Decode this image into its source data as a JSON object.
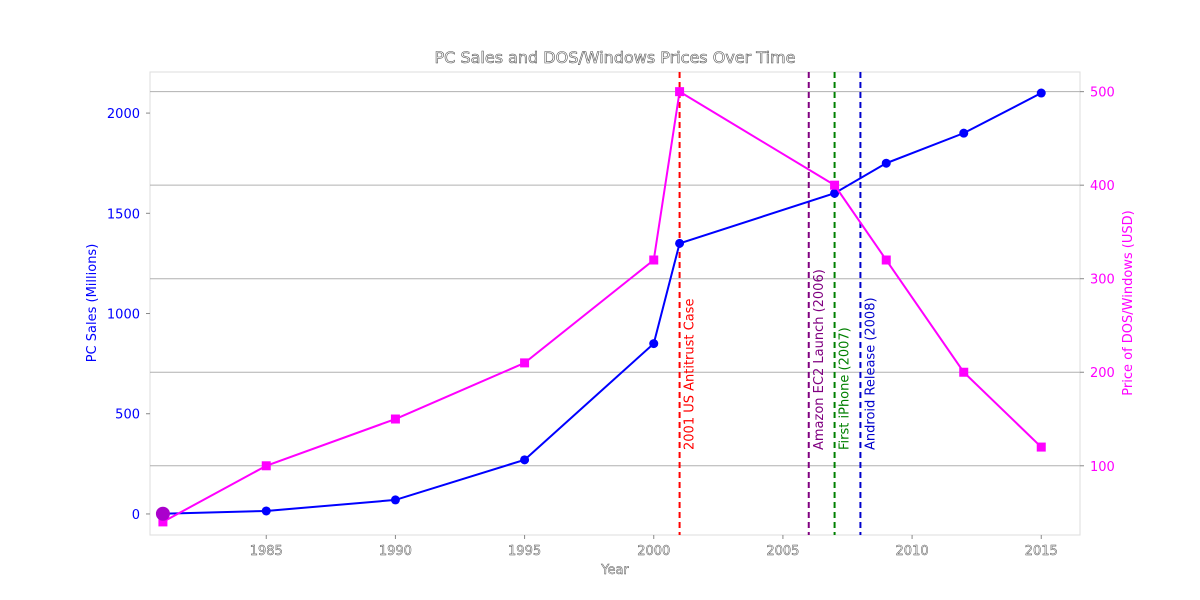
{
  "chart_data": {
    "type": "line",
    "title": "PC Sales and DOS/Windows Prices Over Time",
    "xlabel": "Year",
    "ylabel_left": "PC Sales (Millions)",
    "ylabel_right": "Price of DOS/Windows (USD)",
    "xlim": [
      1980.5,
      2016.5
    ],
    "ylim_left": [
      -105,
      2205
    ],
    "ylim_right": [
      26,
      521
    ],
    "x_ticks": [
      1985,
      1990,
      1995,
      2000,
      2005,
      2010,
      2015
    ],
    "y_ticks_left": [
      0,
      500,
      1000,
      1500,
      2000
    ],
    "y_ticks_right": [
      100,
      200,
      300,
      400,
      500
    ],
    "grid": "horizontal lines at right-axis ticks",
    "series": [
      {
        "axis": "left",
        "color": "#0000ff",
        "marker": "circle",
        "x": [
          1981,
          1985,
          1990,
          1995,
          2000,
          2001,
          2007,
          2009,
          2012,
          2015
        ],
        "values": [
          1,
          15,
          70,
          270,
          850,
          1350,
          1600,
          1750,
          1900,
          2100
        ]
      },
      {
        "axis": "right",
        "color": "#ff00ff",
        "marker": "square",
        "x": [
          1981,
          1985,
          1990,
          1995,
          2000,
          2001,
          2007,
          2009,
          2012,
          2015
        ],
        "values": [
          40,
          100,
          150,
          210,
          320,
          500,
          400,
          320,
          200,
          120
        ]
      }
    ],
    "highlight_point": {
      "x": 1981,
      "color": "#aa00cc"
    },
    "events": [
      {
        "x": 2001,
        "label": "2001 US Antitrust Case",
        "color": "#ff0000"
      },
      {
        "x": 2006,
        "label": "Amazon EC2 Launch (2006)",
        "color": "#800080"
      },
      {
        "x": 2007,
        "label": "First iPhone (2007)",
        "color": "#008000"
      },
      {
        "x": 2008,
        "label": "Android Release (2008)",
        "color": "#0000cc"
      }
    ]
  }
}
